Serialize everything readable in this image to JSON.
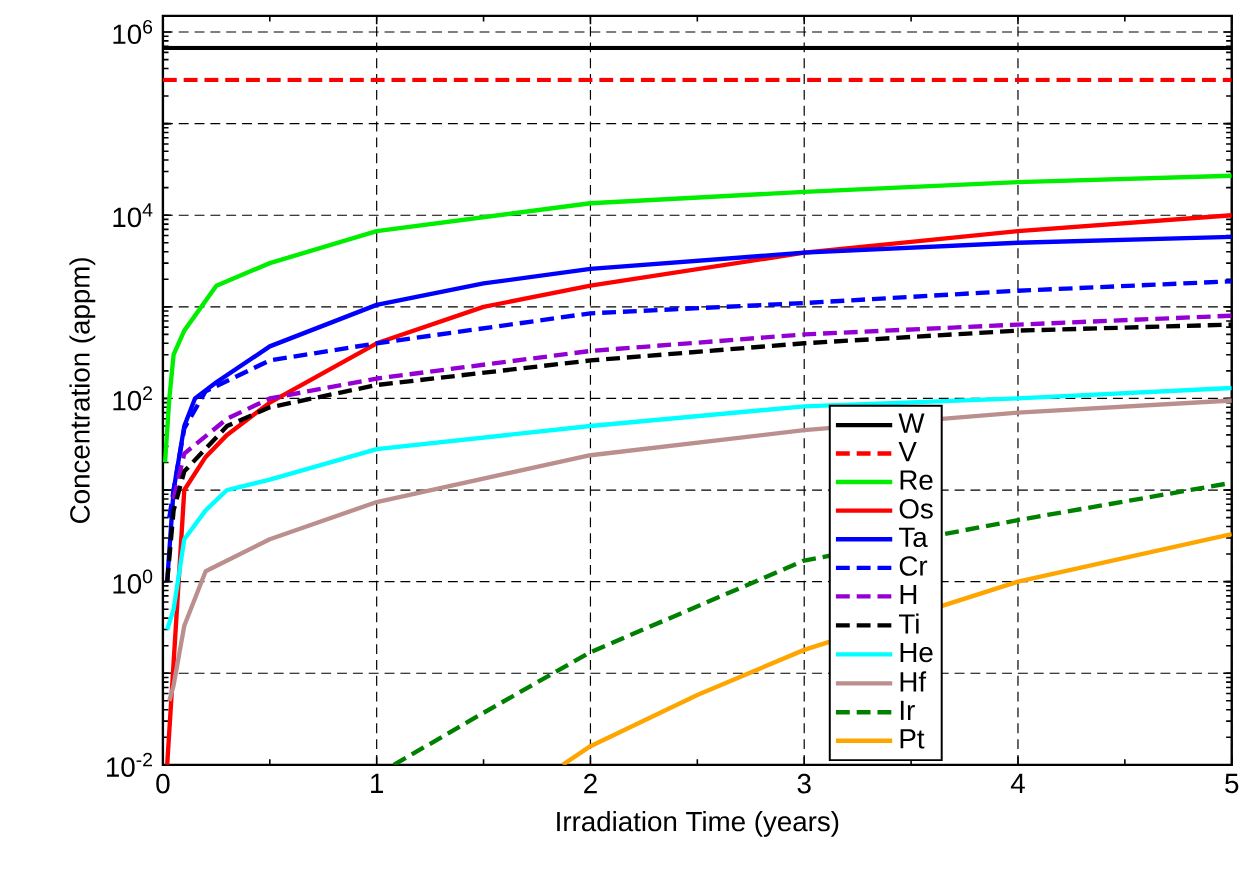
{
  "chart_data": {
    "type": "line",
    "xlabel": "Irradiation Time (years)",
    "ylabel": "Concentration (appm)",
    "log": "y",
    "xlim": [
      0,
      5
    ],
    "xticks": [
      0,
      1,
      2,
      3,
      4,
      5
    ],
    "ylim": [
      0.01,
      1500000
    ],
    "yticks": [
      {
        "value": 0.01,
        "label": "10$^{-2}$"
      },
      {
        "value": 0.1,
        "label": null
      },
      {
        "value": 1,
        "label": "10$^{0}$"
      },
      {
        "value": 10,
        "label": null
      },
      {
        "value": 100,
        "label": "10$^{2}$"
      },
      {
        "value": 1000,
        "label": null
      },
      {
        "value": 10000,
        "label": "10$^{4}$"
      },
      {
        "value": 100000,
        "label": null
      },
      {
        "value": 1000000,
        "label": "10$^{6}$"
      }
    ],
    "grid": true,
    "legend": "bottom right",
    "series": [
      {
        "name": "W",
        "color": "#000000",
        "line_style": "solid",
        "x": [
          0,
          5
        ],
        "values": [
          670000,
          670000
        ]
      },
      {
        "name": "V",
        "color": "#ff0000",
        "line_style": "dashed",
        "x": [
          0,
          5
        ],
        "values": [
          300000,
          300000
        ]
      },
      {
        "name": "Re",
        "color": "#00ee00",
        "line_style": "solid",
        "x": [
          0.01,
          0.03,
          0.05,
          0.1,
          0.25,
          0.5,
          1,
          2,
          3,
          4,
          5
        ],
        "values": [
          20,
          100,
          300,
          550,
          1700,
          3000,
          6700,
          13500,
          18000,
          23000,
          27000
        ]
      },
      {
        "name": "Os",
        "color": "#ff0000",
        "line_style": "solid",
        "x": [
          0.02,
          0.05,
          0.1,
          0.2,
          0.3,
          0.5,
          1,
          1.5,
          2,
          3,
          4,
          5
        ],
        "values": [
          0.01,
          0.13,
          10,
          23,
          40,
          90,
          400,
          1000,
          1700,
          3900,
          6700,
          10000
        ]
      },
      {
        "name": "Ta",
        "color": "#0000ff",
        "line_style": "solid",
        "x": [
          0.02,
          0.05,
          0.1,
          0.15,
          0.25,
          0.5,
          1,
          1.5,
          2,
          3,
          4,
          5
        ],
        "values": [
          1,
          10,
          50,
          100,
          150,
          370,
          1050,
          1800,
          2600,
          3900,
          5000,
          5800
        ]
      },
      {
        "name": "Cr",
        "color": "#0000ff",
        "line_style": "dashed",
        "x": [
          0.03,
          0.05,
          0.1,
          0.2,
          0.5,
          1,
          2,
          3,
          4,
          5
        ],
        "values": [
          5,
          10,
          47,
          120,
          260,
          400,
          850,
          1100,
          1500,
          1900
        ]
      },
      {
        "name": "H",
        "color": "#9400d3",
        "line_style": "dashed",
        "x": [
          0.05,
          0.1,
          0.3,
          0.5,
          1,
          2,
          3,
          4,
          5
        ],
        "values": [
          8,
          25,
          60,
          100,
          165,
          330,
          500,
          640,
          800
        ]
      },
      {
        "name": "Ti",
        "color": "#000000",
        "line_style": "dashed",
        "x": [
          0.02,
          0.05,
          0.1,
          0.3,
          0.5,
          1,
          2,
          3,
          4,
          5
        ],
        "values": [
          1,
          6,
          16,
          50,
          80,
          140,
          260,
          400,
          550,
          640
        ]
      },
      {
        "name": "He",
        "color": "#00ffff",
        "line_style": "solid",
        "x": [
          0.02,
          0.05,
          0.1,
          0.2,
          0.3,
          0.5,
          1,
          2,
          3,
          4,
          5
        ],
        "values": [
          0.3,
          0.5,
          2.9,
          6,
          10,
          13,
          28,
          50,
          82,
          100,
          130
        ]
      },
      {
        "name": "Hf",
        "color": "#bc8f8f",
        "line_style": "solid",
        "x": [
          0.03,
          0.05,
          0.1,
          0.2,
          0.5,
          1,
          2,
          3,
          4,
          5
        ],
        "values": [
          0.05,
          0.074,
          0.33,
          1.3,
          2.9,
          7.4,
          24,
          45,
          70,
          95
        ]
      },
      {
        "name": "Ir",
        "color": "#008000",
        "line_style": "dashed",
        "x": [
          1.08,
          1.5,
          2,
          3,
          4,
          5
        ],
        "values": [
          0.01,
          0.037,
          0.17,
          1.7,
          4.7,
          12
        ]
      },
      {
        "name": "Pt",
        "color": "#ffa500",
        "line_style": "solid",
        "x": [
          1.87,
          2,
          2.5,
          3,
          4,
          5
        ],
        "values": [
          0.01,
          0.016,
          0.058,
          0.18,
          1,
          3.3
        ]
      }
    ]
  }
}
